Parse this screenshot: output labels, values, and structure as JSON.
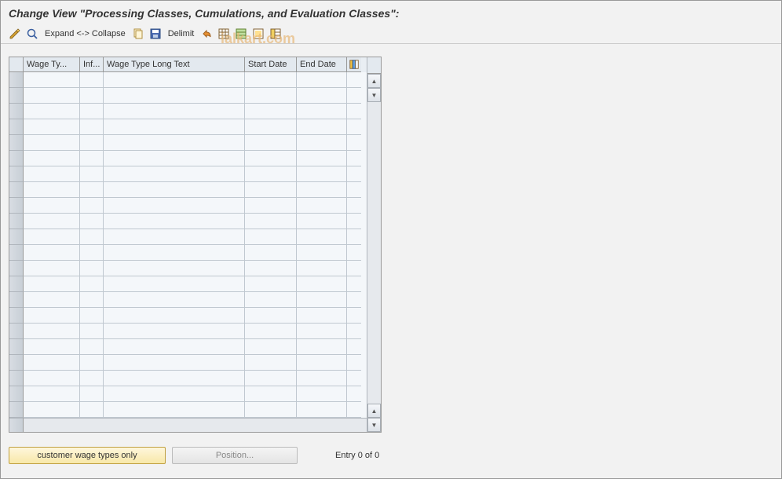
{
  "title": "Change View \"Processing Classes, Cumulations, and Evaluation Classes\":",
  "toolbar": {
    "expand_label": "Expand <-> Collapse",
    "delimit_label": "Delimit"
  },
  "watermark": "ialkart.com",
  "table": {
    "columns": {
      "wage_type": "Wage Ty...",
      "inf": "Inf...",
      "long_text": "Wage Type Long Text",
      "start_date": "Start Date",
      "end_date": "End Date"
    },
    "row_count": 22,
    "colors": {
      "header_bg": "#e3e9ef",
      "cell_bg": "#f4f7fa",
      "border": "#c0c8d0",
      "selector_bg": "#d0d6dd"
    }
  },
  "footer": {
    "customer_btn": "customer wage types only",
    "position_btn": "Position...",
    "entry_text": "Entry 0 of 0"
  }
}
